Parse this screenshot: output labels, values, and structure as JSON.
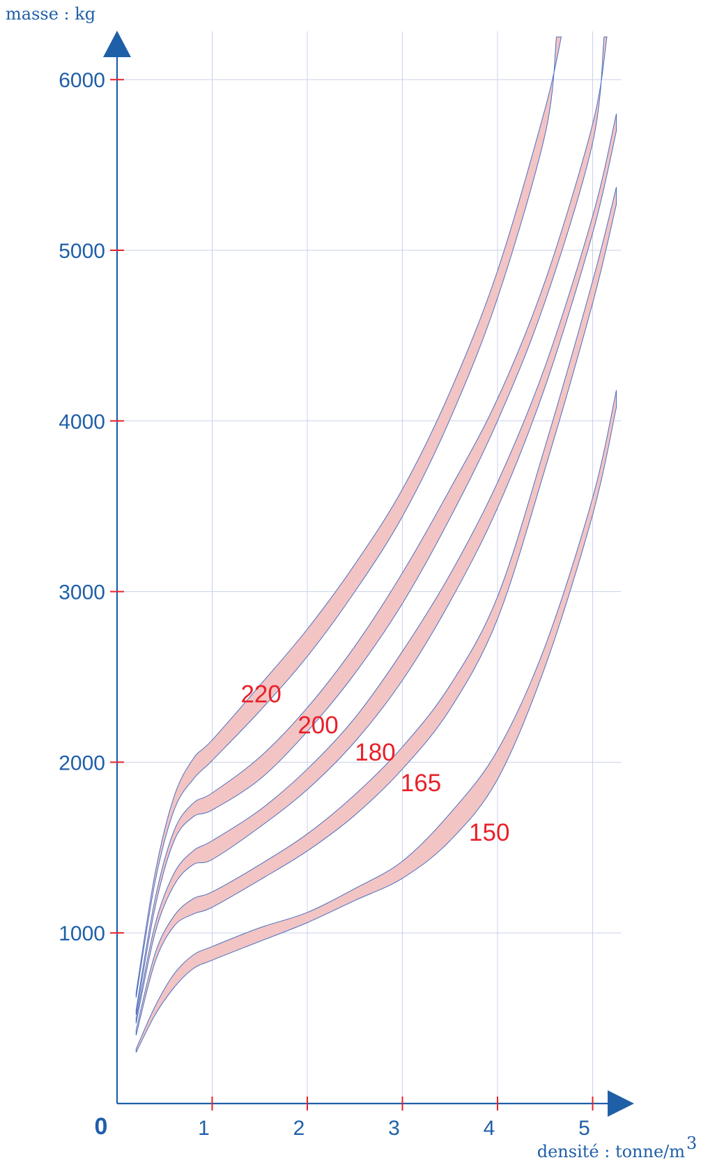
{
  "chart_data": {
    "type": "area",
    "ylabel": "masse : kg",
    "xlabel": "densité : tonne/m",
    "xlabel_sup": "3",
    "origin_label": "0",
    "xlim": [
      0,
      5.3
    ],
    "ylim": [
      0,
      6000
    ],
    "x_ticks": [
      1,
      2,
      3,
      4,
      5
    ],
    "x_tick_labels": [
      "1",
      "2",
      "3",
      "4",
      "5"
    ],
    "y_ticks": [
      1000,
      2000,
      3000,
      4000,
      5000,
      6000
    ],
    "y_tick_labels": [
      "1000",
      "2000",
      "3000",
      "4000",
      "5000",
      "6000"
    ],
    "grid": true,
    "series": [
      {
        "name": "220",
        "label_at": [
          1.3,
          2350
        ],
        "upper": [
          [
            0.2,
            650
          ],
          [
            0.4,
            1350
          ],
          [
            0.6,
            1800
          ],
          [
            0.8,
            2020
          ],
          [
            1.0,
            2130
          ],
          [
            1.5,
            2450
          ],
          [
            2.0,
            2780
          ],
          [
            2.5,
            3160
          ],
          [
            3.0,
            3600
          ],
          [
            3.5,
            4170
          ],
          [
            4.0,
            4880
          ],
          [
            4.5,
            5830
          ],
          [
            4.67,
            6250
          ]
        ],
        "lower": [
          [
            0.2,
            620
          ],
          [
            0.4,
            1300
          ],
          [
            0.6,
            1720
          ],
          [
            0.8,
            1900
          ],
          [
            1.0,
            2010
          ],
          [
            1.5,
            2300
          ],
          [
            2.0,
            2620
          ],
          [
            2.5,
            3000
          ],
          [
            3.0,
            3440
          ],
          [
            3.5,
            4010
          ],
          [
            4.0,
            4720
          ],
          [
            4.5,
            5680
          ],
          [
            4.62,
            6250
          ]
        ]
      },
      {
        "name": "200",
        "label_at": [
          1.9,
          2170
        ],
        "upper": [
          [
            0.2,
            550
          ],
          [
            0.4,
            1200
          ],
          [
            0.6,
            1600
          ],
          [
            0.8,
            1760
          ],
          [
            1.0,
            1820
          ],
          [
            1.5,
            2030
          ],
          [
            2.0,
            2320
          ],
          [
            2.5,
            2680
          ],
          [
            3.0,
            3110
          ],
          [
            3.5,
            3600
          ],
          [
            4.0,
            4130
          ],
          [
            4.5,
            4820
          ],
          [
            5.0,
            5740
          ],
          [
            5.15,
            6250
          ]
        ],
        "lower": [
          [
            0.2,
            520
          ],
          [
            0.4,
            1150
          ],
          [
            0.6,
            1540
          ],
          [
            0.8,
            1680
          ],
          [
            1.0,
            1720
          ],
          [
            1.5,
            1900
          ],
          [
            2.0,
            2180
          ],
          [
            2.5,
            2520
          ],
          [
            3.0,
            2930
          ],
          [
            3.5,
            3430
          ],
          [
            4.0,
            4000
          ],
          [
            4.5,
            4700
          ],
          [
            5.0,
            5630
          ],
          [
            5.12,
            6250
          ]
        ]
      },
      {
        "name": "180",
        "label_at": [
          2.5,
          2010
        ],
        "upper": [
          [
            0.2,
            500
          ],
          [
            0.4,
            1050
          ],
          [
            0.6,
            1350
          ],
          [
            0.8,
            1480
          ],
          [
            1.0,
            1540
          ],
          [
            1.5,
            1720
          ],
          [
            2.0,
            1960
          ],
          [
            2.5,
            2260
          ],
          [
            3.0,
            2650
          ],
          [
            3.5,
            3100
          ],
          [
            4.0,
            3640
          ],
          [
            4.5,
            4320
          ],
          [
            5.0,
            5200
          ],
          [
            5.25,
            5800
          ]
        ],
        "lower": [
          [
            0.2,
            470
          ],
          [
            0.4,
            1000
          ],
          [
            0.6,
            1280
          ],
          [
            0.8,
            1400
          ],
          [
            1.0,
            1430
          ],
          [
            1.5,
            1620
          ],
          [
            2.0,
            1840
          ],
          [
            2.5,
            2120
          ],
          [
            3.0,
            2480
          ],
          [
            3.5,
            2940
          ],
          [
            4.0,
            3490
          ],
          [
            4.5,
            4200
          ],
          [
            5.0,
            5100
          ],
          [
            5.25,
            5700
          ]
        ]
      },
      {
        "name": "165",
        "label_at": [
          2.98,
          1830
        ],
        "upper": [
          [
            0.2,
            430
          ],
          [
            0.4,
            880
          ],
          [
            0.6,
            1100
          ],
          [
            0.8,
            1200
          ],
          [
            1.0,
            1240
          ],
          [
            1.5,
            1400
          ],
          [
            2.0,
            1580
          ],
          [
            2.5,
            1810
          ],
          [
            3.0,
            2090
          ],
          [
            3.5,
            2450
          ],
          [
            4.0,
            2970
          ],
          [
            4.5,
            3850
          ],
          [
            5.0,
            4820
          ],
          [
            5.25,
            5370
          ]
        ],
        "lower": [
          [
            0.2,
            400
          ],
          [
            0.4,
            830
          ],
          [
            0.6,
            1040
          ],
          [
            0.8,
            1110
          ],
          [
            1.0,
            1150
          ],
          [
            1.5,
            1310
          ],
          [
            2.0,
            1480
          ],
          [
            2.5,
            1690
          ],
          [
            3.0,
            1960
          ],
          [
            3.5,
            2310
          ],
          [
            4.0,
            2840
          ],
          [
            4.5,
            3720
          ],
          [
            5.0,
            4690
          ],
          [
            5.25,
            5270
          ]
        ]
      },
      {
        "name": "150",
        "label_at": [
          3.7,
          1540
        ],
        "upper": [
          [
            0.2,
            320
          ],
          [
            0.4,
            570
          ],
          [
            0.6,
            760
          ],
          [
            0.8,
            870
          ],
          [
            1.0,
            920
          ],
          [
            1.5,
            1030
          ],
          [
            2.0,
            1120
          ],
          [
            2.5,
            1260
          ],
          [
            3.0,
            1420
          ],
          [
            3.5,
            1700
          ],
          [
            4.0,
            2070
          ],
          [
            4.5,
            2680
          ],
          [
            5.0,
            3550
          ],
          [
            5.25,
            4180
          ]
        ],
        "lower": [
          [
            0.2,
            300
          ],
          [
            0.4,
            520
          ],
          [
            0.6,
            680
          ],
          [
            0.8,
            790
          ],
          [
            1.0,
            840
          ],
          [
            1.5,
            950
          ],
          [
            2.0,
            1060
          ],
          [
            2.5,
            1190
          ],
          [
            3.0,
            1320
          ],
          [
            3.5,
            1540
          ],
          [
            4.0,
            1900
          ],
          [
            4.5,
            2560
          ],
          [
            5.0,
            3450
          ],
          [
            5.25,
            4080
          ]
        ]
      }
    ],
    "colors": {
      "axis": "#1f5fa8",
      "tick": "#e8202a",
      "grid": "#c9d1ea",
      "band_fill": "#f3c4c4",
      "band_edge": "#4a6fc0",
      "band_label": "#e8202a"
    }
  }
}
